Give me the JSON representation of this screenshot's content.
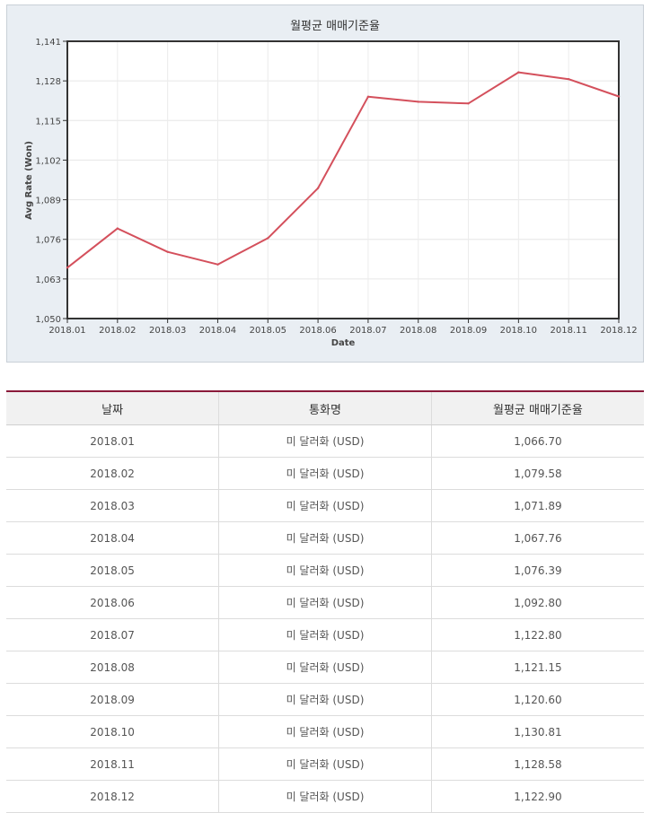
{
  "chart_data": {
    "type": "line",
    "title": "월평균 매매기준율",
    "xlabel": "Date",
    "ylabel": "Avg Rate (Won)",
    "ylim": [
      1050,
      1141
    ],
    "yticks": [
      "1,050",
      "1,063",
      "1,076",
      "1,089",
      "1,102",
      "1,115",
      "1,128",
      "1,141"
    ],
    "ytick_values": [
      1050,
      1063,
      1076,
      1089,
      1102,
      1115,
      1128,
      1141
    ],
    "categories": [
      "2018.01",
      "2018.02",
      "2018.03",
      "2018.04",
      "2018.05",
      "2018.06",
      "2018.07",
      "2018.08",
      "2018.09",
      "2018.10",
      "2018.11",
      "2018.12"
    ],
    "values": [
      1066.7,
      1079.58,
      1071.89,
      1067.76,
      1076.39,
      1092.8,
      1122.8,
      1121.15,
      1120.6,
      1130.81,
      1128.58,
      1122.9
    ],
    "line_color": "#d4505c",
    "grid": true,
    "legend": "none"
  },
  "table": {
    "headers": [
      "날짜",
      "통화명",
      "월평균 매매기준율"
    ],
    "rows": [
      [
        "2018.01",
        "미 달러화 (USD)",
        "1,066.70"
      ],
      [
        "2018.02",
        "미 달러화 (USD)",
        "1,079.58"
      ],
      [
        "2018.03",
        "미 달러화 (USD)",
        "1,071.89"
      ],
      [
        "2018.04",
        "미 달러화 (USD)",
        "1,067.76"
      ],
      [
        "2018.05",
        "미 달러화 (USD)",
        "1,076.39"
      ],
      [
        "2018.06",
        "미 달러화 (USD)",
        "1,092.80"
      ],
      [
        "2018.07",
        "미 달러화 (USD)",
        "1,122.80"
      ],
      [
        "2018.08",
        "미 달러화 (USD)",
        "1,121.15"
      ],
      [
        "2018.09",
        "미 달러화 (USD)",
        "1,120.60"
      ],
      [
        "2018.10",
        "미 달러화 (USD)",
        "1,130.81"
      ],
      [
        "2018.11",
        "미 달러화 (USD)",
        "1,128.58"
      ],
      [
        "2018.12",
        "미 달러화 (USD)",
        "1,122.90"
      ]
    ]
  }
}
